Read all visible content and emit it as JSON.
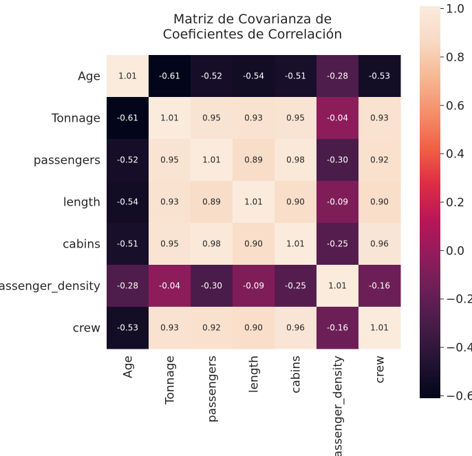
{
  "chart_data": {
    "type": "heatmap",
    "title": [
      "Matriz de Covarianza de",
      "Coeficientes de Correlación"
    ],
    "rows": [
      "Age",
      "Tonnage",
      "passengers",
      "length",
      "cabins",
      "passenger_density",
      "crew"
    ],
    "columns": [
      "Age",
      "Tonnage",
      "passengers",
      "length",
      "cabins",
      "passenger_density",
      "crew"
    ],
    "values": [
      [
        1.01,
        -0.61,
        -0.52,
        -0.54,
        -0.51,
        -0.28,
        -0.53
      ],
      [
        -0.61,
        1.01,
        0.95,
        0.93,
        0.95,
        -0.04,
        0.93
      ],
      [
        -0.52,
        0.95,
        1.01,
        0.89,
        0.98,
        -0.3,
        0.92
      ],
      [
        -0.54,
        0.93,
        0.89,
        1.01,
        0.9,
        -0.09,
        0.9
      ],
      [
        -0.51,
        0.95,
        0.98,
        0.9,
        1.01,
        -0.25,
        0.96
      ],
      [
        -0.28,
        -0.04,
        -0.3,
        -0.09,
        -0.25,
        1.01,
        -0.16
      ],
      [
        -0.53,
        0.93,
        0.92,
        0.9,
        0.96,
        -0.16,
        1.01
      ]
    ],
    "annotation_format": "2 decimals",
    "colormap": "rocket",
    "colorbar": {
      "range": [
        -0.61,
        1.01
      ],
      "ticks": [
        1.0,
        0.8,
        0.6,
        0.4,
        0.2,
        0.0,
        -0.2,
        -0.4,
        -0.6
      ],
      "tick_labels": [
        "1.0",
        "0.8",
        "0.6",
        "0.4",
        "0.2",
        "0.0",
        "−0.2",
        "−0.4",
        "−0.6"
      ]
    },
    "colors": [
      "#03051a",
      "#221331",
      "#451c47",
      "#6a1f56",
      "#921c5b",
      "#b91657",
      "#dd2c45",
      "#f06043",
      "#f58e6a",
      "#f6b793",
      "#f8dac4",
      "#faebdd"
    ]
  }
}
